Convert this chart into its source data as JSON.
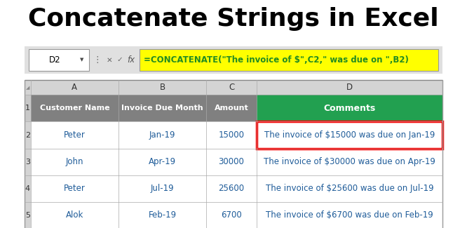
{
  "title": "Concatenate Strings in Excel",
  "title_fontsize": 26,
  "title_fontweight": "bold",
  "cell_ref": "D2",
  "formula": "=CONCATENATE(\"The invoice of $\",C2,\" was due on \",B2)",
  "col_headers": [
    "A",
    "B",
    "C",
    "D"
  ],
  "row_headers": [
    "1",
    "2",
    "3",
    "4",
    "5"
  ],
  "table_headers": [
    "Customer Name",
    "Invoice Due Month",
    "Amount",
    "Comments"
  ],
  "header_bg": "#808080",
  "header_fg": "#FFFFFF",
  "d_header_bg": "#22A050",
  "d_header_fg": "#FFFFFF",
  "data": [
    [
      "Peter",
      "Jan-19",
      "15000",
      "The invoice of $15000 was due on Jan-19"
    ],
    [
      "John",
      "Apr-19",
      "30000",
      "The invoice of $30000 was due on Apr-19"
    ],
    [
      "Peter",
      "Jul-19",
      "25600",
      "The invoice of $25600 was due on Jul-19"
    ],
    [
      "Alok",
      "Feb-19",
      "6700",
      "The invoice of $6700 was due on Feb-19"
    ]
  ],
  "data_text_color": "#1F5C99",
  "formula_bar_bg": "#FFFF00",
  "formula_bar_fg": "#228B22",
  "grid_color": "#AAAAAA",
  "bg_color": "#FFFFFF",
  "highlight_color": "#FF0000",
  "toolbar_bg": "#E0E0E0"
}
